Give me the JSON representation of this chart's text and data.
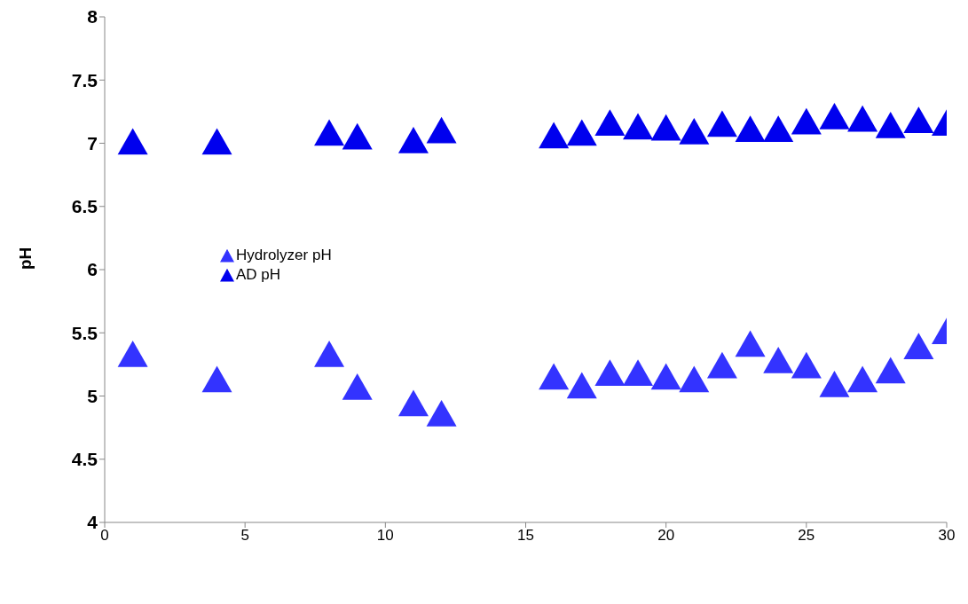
{
  "chart_data": {
    "type": "scatter",
    "ylabel": "pH",
    "xlim": [
      0,
      30
    ],
    "xticks": [
      0,
      5,
      10,
      15,
      20,
      25,
      30
    ],
    "ylim": [
      4,
      8
    ],
    "yticks": [
      4,
      4.5,
      5,
      5.5,
      6,
      6.5,
      7,
      7.5,
      8
    ],
    "grid": false,
    "legend": "left",
    "marker": "triangle",
    "series": [
      {
        "name": "Hydrolyzer pH",
        "color": "#3333ff",
        "x": [
          1,
          4,
          8,
          9,
          11,
          12,
          16,
          17,
          18,
          19,
          20,
          21,
          22,
          23,
          24,
          25,
          26,
          27,
          28,
          29,
          30
        ],
        "values": [
          5.32,
          5.12,
          5.32,
          5.06,
          4.93,
          4.85,
          5.14,
          5.07,
          5.17,
          5.17,
          5.14,
          5.12,
          5.23,
          5.4,
          5.27,
          5.23,
          5.08,
          5.12,
          5.19,
          5.38,
          5.5
        ]
      },
      {
        "name": "AD pH",
        "color": "#0000ee",
        "x": [
          1,
          4,
          8,
          9,
          11,
          12,
          16,
          17,
          18,
          19,
          20,
          21,
          22,
          23,
          24,
          25,
          26,
          27,
          28,
          29,
          30
        ],
        "values": [
          7.0,
          7.0,
          7.07,
          7.04,
          7.01,
          7.09,
          7.05,
          7.07,
          7.15,
          7.12,
          7.11,
          7.08,
          7.14,
          7.1,
          7.1,
          7.16,
          7.2,
          7.18,
          7.13,
          7.17,
          7.15
        ]
      }
    ]
  }
}
